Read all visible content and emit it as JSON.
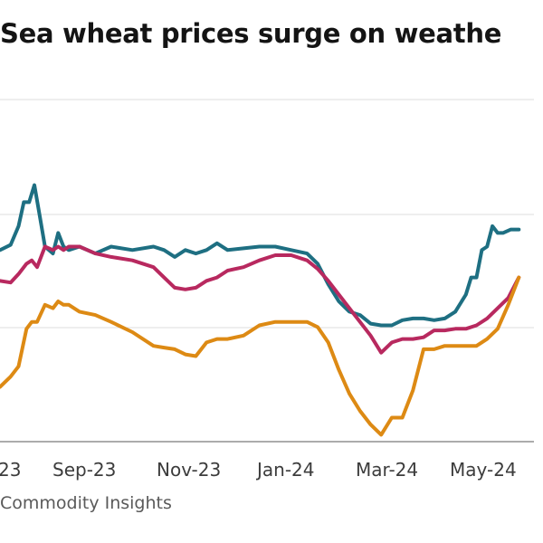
{
  "title": "Sea wheat prices surge on weathe",
  "source": "Commodity Insights",
  "chart_data": {
    "type": "line",
    "title": "Sea wheat prices surge on weathe",
    "xlabel": "",
    "ylabel": "",
    "x_ticks": [
      "23",
      "Sep-23",
      "Nov-23",
      "Jan-24",
      "Mar-24",
      "May-24"
    ],
    "grid": true,
    "legend": "none",
    "xlim": [
      0,
      100
    ],
    "ylim": [
      0,
      100
    ],
    "series": [
      {
        "color": "#1e6f82",
        "x": [
          0,
          2,
          3.5,
          4.5,
          5.5,
          6.5,
          7.5,
          8.5,
          10,
          11,
          12,
          13,
          15,
          18,
          21,
          25,
          29,
          31,
          33,
          35,
          37,
          39,
          41,
          43,
          46,
          49,
          52,
          55,
          58,
          60,
          62,
          64,
          66,
          68,
          70,
          72,
          74,
          76,
          78,
          80,
          82,
          84,
          86,
          88,
          89,
          90,
          91,
          92,
          93,
          94,
          95,
          96.5,
          98
        ],
        "y": [
          56,
          57.5,
          63,
          70,
          70,
          75,
          66,
          57,
          55,
          61,
          57,
          56,
          57,
          55,
          57,
          56,
          57,
          56,
          54,
          56,
          55,
          56,
          58,
          56,
          56.5,
          57,
          57,
          56,
          55,
          52,
          46,
          41,
          38,
          37,
          34.5,
          34,
          34,
          35.5,
          36,
          36,
          35.5,
          36,
          38,
          43,
          48,
          48,
          56,
          57,
          63,
          61,
          61,
          62,
          62
        ]
      },
      {
        "color": "#b8295f",
        "x": [
          0,
          2,
          3.5,
          5,
          6,
          7,
          8.5,
          10,
          11,
          12,
          13,
          15,
          18,
          21,
          25,
          29,
          31,
          33,
          35,
          37,
          39,
          41,
          43,
          46,
          49,
          52,
          55,
          58,
          60,
          62,
          64,
          66,
          68,
          70,
          72,
          74,
          76,
          78,
          80,
          82,
          84,
          86,
          88,
          90,
          92,
          94,
          96,
          98
        ],
        "y": [
          47,
          46.5,
          49,
          52,
          53,
          51,
          57,
          56,
          57,
          56,
          57,
          57,
          55,
          54,
          53,
          51,
          48,
          45,
          44.5,
          45,
          47,
          48,
          50,
          51,
          53,
          54.5,
          54.5,
          53,
          50.5,
          47,
          43,
          39,
          35,
          31,
          26,
          29,
          30,
          30,
          30.5,
          32.5,
          32.5,
          33,
          33,
          34,
          36,
          39,
          42,
          48
        ]
      },
      {
        "color": "#dd8a14",
        "x": [
          0,
          2,
          3.5,
          5,
          6,
          7,
          8.5,
          10,
          11,
          12,
          13,
          15,
          18,
          21,
          25,
          29,
          31,
          33,
          35,
          37,
          39,
          41,
          43,
          46,
          49,
          52,
          55,
          58,
          60,
          62,
          64,
          66,
          68,
          70,
          72,
          74,
          76,
          78,
          80,
          82,
          84,
          86,
          88,
          90,
          92,
          94,
          96,
          98
        ],
        "y": [
          16,
          19,
          22,
          33,
          35,
          35,
          40,
          39,
          41,
          40,
          40,
          38,
          37,
          35,
          32,
          28,
          27.5,
          27,
          25.5,
          25,
          29,
          30,
          30,
          31,
          34,
          35,
          35,
          35,
          33.5,
          29,
          21,
          14,
          9,
          5,
          2,
          7,
          7,
          15,
          27,
          27,
          28,
          28,
          28,
          28,
          30,
          33,
          40,
          48
        ]
      }
    ]
  }
}
